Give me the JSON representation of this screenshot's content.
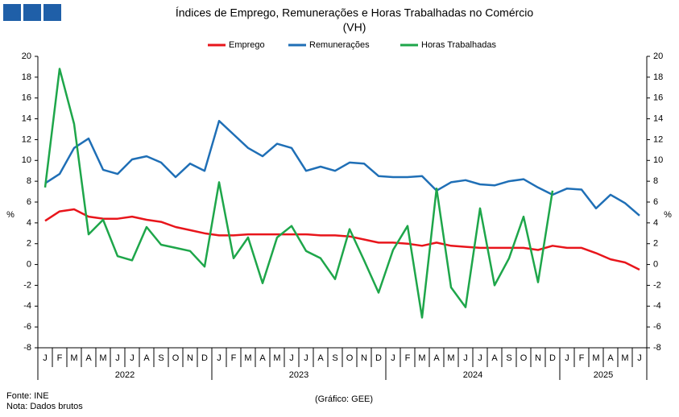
{
  "chart_data": {
    "type": "line",
    "title": "Índices de Emprego, Remunerações e Horas Trabalhadas no Comércio",
    "subtitle": "(VH)",
    "ylabel": "%",
    "y2label": "%",
    "categories": [
      "J",
      "F",
      "M",
      "A",
      "M",
      "J",
      "J",
      "A",
      "S",
      "O",
      "N",
      "D",
      "J",
      "F",
      "M",
      "A",
      "M",
      "J",
      "J",
      "A",
      "S",
      "O",
      "N",
      "D",
      "J",
      "F",
      "M",
      "A",
      "M",
      "J",
      "J",
      "A",
      "S",
      "O",
      "N",
      "D",
      "J",
      "F",
      "M",
      "A",
      "M",
      "J"
    ],
    "years": [
      "2022",
      "2023",
      "2024",
      "2025"
    ],
    "series": [
      {
        "name": "Emprego",
        "color": "#e8151b",
        "values": [
          4.2,
          5.1,
          5.3,
          4.6,
          4.4,
          4.4,
          4.6,
          4.3,
          4.1,
          3.6,
          3.3,
          3.0,
          2.8,
          2.8,
          2.9,
          2.9,
          2.9,
          2.9,
          2.9,
          2.8,
          2.8,
          2.7,
          2.4,
          2.1,
          2.1,
          2.0,
          1.8,
          2.1,
          1.8,
          1.7,
          1.6,
          1.6,
          1.6,
          1.6,
          1.4,
          1.8,
          1.6,
          1.6,
          1.1,
          0.5,
          0.2,
          -0.5
        ]
      },
      {
        "name": "Remunerações",
        "color": "#1f6fb6",
        "values": [
          7.8,
          8.7,
          11.2,
          12.1,
          9.1,
          8.7,
          10.1,
          10.4,
          9.8,
          8.4,
          9.7,
          9.0,
          13.8,
          12.5,
          11.2,
          10.4,
          11.6,
          11.2,
          9.0,
          9.4,
          9.0,
          9.8,
          9.7,
          8.5,
          8.4,
          8.4,
          8.5,
          7.1,
          7.9,
          8.1,
          7.7,
          7.6,
          8.0,
          8.2,
          7.4,
          6.7,
          7.3,
          7.2,
          5.4,
          6.7,
          5.9,
          4.7
        ]
      },
      {
        "name": "Horas Trabalhadas",
        "color": "#1ea64a",
        "values": [
          7.4,
          18.8,
          13.5,
          2.9,
          4.3,
          0.8,
          0.4,
          3.6,
          1.9,
          1.6,
          1.3,
          -0.2,
          7.9,
          0.6,
          2.6,
          -1.8,
          2.6,
          3.7,
          1.3,
          0.6,
          -1.4,
          3.4,
          0.4,
          -2.7,
          1.4,
          3.7,
          -5.1,
          7.3,
          -2.2,
          -4.1,
          5.4,
          -2.0,
          0.6,
          4.6,
          -1.7,
          7.1,
          null,
          null,
          null,
          null,
          null,
          null
        ]
      }
    ],
    "ylim": [
      -8,
      20
    ],
    "yticks": [
      -8,
      -6,
      -4,
      -2,
      0,
      2,
      4,
      6,
      8,
      10,
      12,
      14,
      16,
      18,
      20
    ],
    "y2lim": [
      -8,
      20
    ],
    "y2ticks": [
      -8,
      -6,
      -4,
      -2,
      0,
      2,
      4,
      6,
      8,
      10,
      12,
      14,
      16,
      18,
      20
    ],
    "legend": "top",
    "source": "Fonte: INE",
    "note": "Nota: Dados brutos",
    "credit": "(Gráfico: GEE)"
  }
}
